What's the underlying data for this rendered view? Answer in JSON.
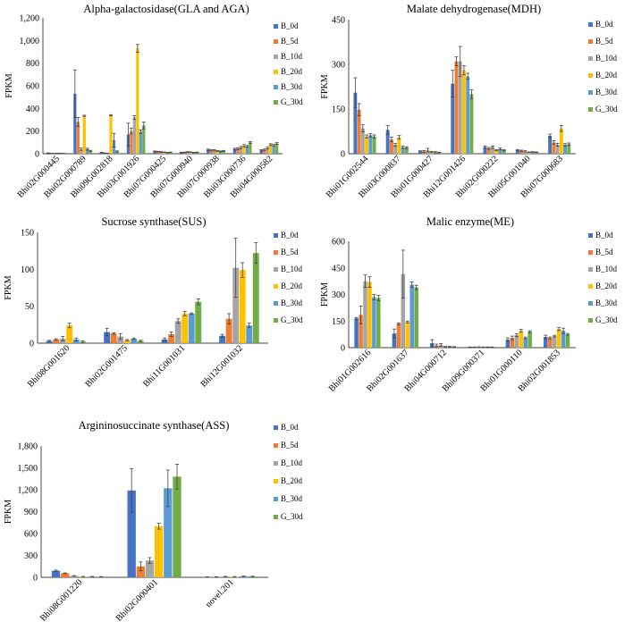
{
  "series_names": [
    "B_0d",
    "B_5d",
    "B_10d",
    "B_20d",
    "B_30d",
    "G_30d"
  ],
  "series_colors": [
    "#4472c4",
    "#ed7d31",
    "#a5a5a5",
    "#ffc000",
    "#5b9bd5",
    "#70ad47"
  ],
  "chart_data": [
    {
      "type": "bar",
      "title": "Alpha-galactosidase(GLA and AGA)",
      "ylabel": "FPKM",
      "ylim": [
        0,
        1200
      ],
      "yticks": [
        0,
        200,
        400,
        600,
        800,
        1000,
        1200
      ],
      "ytick_labels": [
        "0",
        "200",
        "400",
        "600",
        "800",
        "1,000",
        "1,200"
      ],
      "categories": [
        "Bhi02G000445",
        "Bhi02G000789",
        "Bhi09G002818",
        "Bhi03G001926",
        "Bhi07G000425",
        "Bhi07G000940",
        "Bhi07G000938",
        "Bhi03G000736",
        "Bhi04G000582"
      ],
      "series": [
        {
          "name": "B_0d",
          "values": [
            5,
            530,
            10,
            170,
            20,
            10,
            35,
            40,
            30
          ],
          "errors": [
            2,
            210,
            3,
            100,
            4,
            3,
            6,
            8,
            6
          ]
        },
        {
          "name": "B_5d",
          "values": [
            3,
            280,
            5,
            200,
            18,
            12,
            30,
            45,
            35
          ],
          "errors": [
            1,
            40,
            2,
            25,
            3,
            2,
            5,
            8,
            6
          ]
        },
        {
          "name": "B_10d",
          "values": [
            2,
            40,
            3,
            320,
            15,
            15,
            30,
            55,
            50
          ],
          "errors": [
            1,
            10,
            1,
            15,
            3,
            3,
            5,
            10,
            8
          ]
        },
        {
          "name": "B_20d",
          "values": [
            4,
            335,
            340,
            930,
            14,
            14,
            25,
            70,
            80
          ],
          "errors": [
            1,
            5,
            5,
            35,
            2,
            2,
            4,
            10,
            8
          ]
        },
        {
          "name": "B_30d",
          "values": [
            3,
            40,
            120,
            195,
            10,
            10,
            20,
            65,
            75
          ],
          "errors": [
            1,
            8,
            60,
            15,
            2,
            2,
            4,
            8,
            8
          ]
        },
        {
          "name": "G_30d",
          "values": [
            2,
            25,
            20,
            250,
            12,
            12,
            25,
            100,
            90
          ],
          "errors": [
            1,
            5,
            5,
            30,
            2,
            2,
            4,
            8,
            8
          ]
        }
      ]
    },
    {
      "type": "bar",
      "title": "Malate dehydrogenase(MDH)",
      "ylabel": "FPKM",
      "ylim": [
        0,
        450
      ],
      "yticks": [
        0,
        150,
        300,
        450
      ],
      "ytick_labels": [
        "0",
        "150",
        "300",
        "450"
      ],
      "categories": [
        "Bhi01G002544",
        "Bhi03G000837",
        "Bhi01G000427",
        "Bhi12G001426",
        "Bhi02G000222",
        "Bhi05G001040",
        "Bhi07G000683"
      ],
      "series": [
        {
          "name": "B_0d",
          "values": [
            205,
            80,
            8,
            235,
            22,
            12,
            60
          ],
          "errors": [
            50,
            15,
            2,
            45,
            4,
            2,
            6
          ]
        },
        {
          "name": "B_5d",
          "values": [
            148,
            48,
            8,
            310,
            18,
            10,
            38
          ],
          "errors": [
            20,
            8,
            3,
            15,
            3,
            2,
            6
          ]
        },
        {
          "name": "B_10d",
          "values": [
            85,
            30,
            12,
            310,
            22,
            8,
            30
          ],
          "errors": [
            12,
            5,
            6,
            50,
            4,
            2,
            5
          ]
        },
        {
          "name": "B_20d",
          "values": [
            58,
            55,
            6,
            280,
            12,
            5,
            85
          ],
          "errors": [
            5,
            6,
            2,
            15,
            2,
            1,
            10
          ]
        },
        {
          "name": "B_30d",
          "values": [
            62,
            22,
            5,
            260,
            16,
            6,
            30
          ],
          "errors": [
            5,
            4,
            2,
            10,
            3,
            1,
            4
          ]
        },
        {
          "name": "G_30d",
          "values": [
            58,
            20,
            4,
            200,
            12,
            5,
            32
          ],
          "errors": [
            5,
            3,
            1,
            15,
            2,
            1,
            4
          ]
        }
      ]
    },
    {
      "type": "bar",
      "title": "Sucrose synthase(SUS)",
      "ylabel": "FPKM",
      "ylim": [
        0,
        150
      ],
      "yticks": [
        0,
        50,
        100,
        150
      ],
      "ytick_labels": [
        "0",
        "50",
        "100",
        "150"
      ],
      "categories": [
        "Bhi08G001620",
        "Bhi02G001475",
        "Bhi11G001031",
        "Bhi12G001032"
      ],
      "series": [
        {
          "name": "B_0d",
          "values": [
            3,
            15,
            5,
            10
          ],
          "errors": [
            1,
            5,
            2,
            2
          ]
        },
        {
          "name": "B_5d",
          "values": [
            5,
            13,
            12,
            33
          ],
          "errors": [
            1,
            1,
            3,
            7
          ]
        },
        {
          "name": "B_10d",
          "values": [
            6,
            9,
            30,
            102
          ],
          "errors": [
            3,
            4,
            3,
            40
          ]
        },
        {
          "name": "B_20d",
          "values": [
            24,
            4,
            40,
            99
          ],
          "errors": [
            3,
            1,
            3,
            10
          ]
        },
        {
          "name": "B_30d",
          "values": [
            5,
            6,
            40,
            24
          ],
          "errors": [
            2,
            1,
            1,
            3
          ]
        },
        {
          "name": "G_30d",
          "values": [
            2,
            3,
            56,
            122
          ],
          "errors": [
            1,
            1,
            4,
            14
          ]
        }
      ]
    },
    {
      "type": "bar",
      "title": "Malic enzyme(ME)",
      "ylabel": "FPKM",
      "ylim": [
        0,
        600
      ],
      "yticks": [
        0,
        150,
        300,
        450,
        600
      ],
      "ytick_labels": [
        "0",
        "150",
        "300",
        "450",
        "600"
      ],
      "categories": [
        "Bhi01G002616",
        "Bhi02G001637",
        "Bhi04G000712",
        "Bhi09G000371",
        "Bhi01G000110",
        "Bhi02G001853"
      ],
      "series": [
        {
          "name": "B_0d",
          "values": [
            165,
            80,
            25,
            3,
            45,
            60
          ],
          "errors": [
            5,
            25,
            20,
            1,
            10,
            10
          ]
        },
        {
          "name": "B_5d",
          "values": [
            185,
            135,
            12,
            3,
            55,
            55
          ],
          "errors": [
            50,
            5,
            8,
            1,
            10,
            5
          ]
        },
        {
          "name": "B_10d",
          "values": [
            375,
            415,
            15,
            4,
            70,
            65
          ],
          "errors": [
            35,
            135,
            8,
            1,
            8,
            5
          ]
        },
        {
          "name": "B_20d",
          "values": [
            370,
            145,
            5,
            3,
            95,
            105
          ],
          "errors": [
            30,
            5,
            2,
            1,
            8,
            8
          ]
        },
        {
          "name": "B_30d",
          "values": [
            285,
            355,
            5,
            3,
            55,
            95
          ],
          "errors": [
            15,
            15,
            2,
            1,
            5,
            15
          ]
        },
        {
          "name": "G_30d",
          "values": [
            280,
            340,
            4,
            3,
            90,
            75
          ],
          "errors": [
            15,
            12,
            2,
            1,
            5,
            5
          ]
        }
      ]
    },
    {
      "type": "bar",
      "title": "Argininosuccinate synthase(ASS)",
      "ylabel": "FPKM",
      "ylim": [
        0,
        1800
      ],
      "yticks": [
        0,
        300,
        600,
        900,
        1200,
        1500,
        1800
      ],
      "ytick_labels": [
        "0",
        "300",
        "600",
        "900",
        "1,200",
        "1,500",
        "1,800"
      ],
      "categories": [
        "Bhi08G001220",
        "Bhi02G000401",
        "novel.201"
      ],
      "series": [
        {
          "name": "B_0d",
          "values": [
            90,
            1190,
            5
          ],
          "errors": [
            10,
            300,
            2
          ]
        },
        {
          "name": "B_5d",
          "values": [
            55,
            150,
            5
          ],
          "errors": [
            5,
            60,
            2
          ]
        },
        {
          "name": "B_10d",
          "values": [
            20,
            230,
            10
          ],
          "errors": [
            3,
            40,
            3
          ]
        },
        {
          "name": "B_20d",
          "values": [
            10,
            700,
            8
          ],
          "errors": [
            2,
            40,
            2
          ]
        },
        {
          "name": "B_30d",
          "values": [
            10,
            1220,
            15
          ],
          "errors": [
            2,
            250,
            3
          ]
        },
        {
          "name": "G_30d",
          "values": [
            8,
            1380,
            12
          ],
          "errors": [
            2,
            170,
            3
          ]
        }
      ]
    }
  ]
}
